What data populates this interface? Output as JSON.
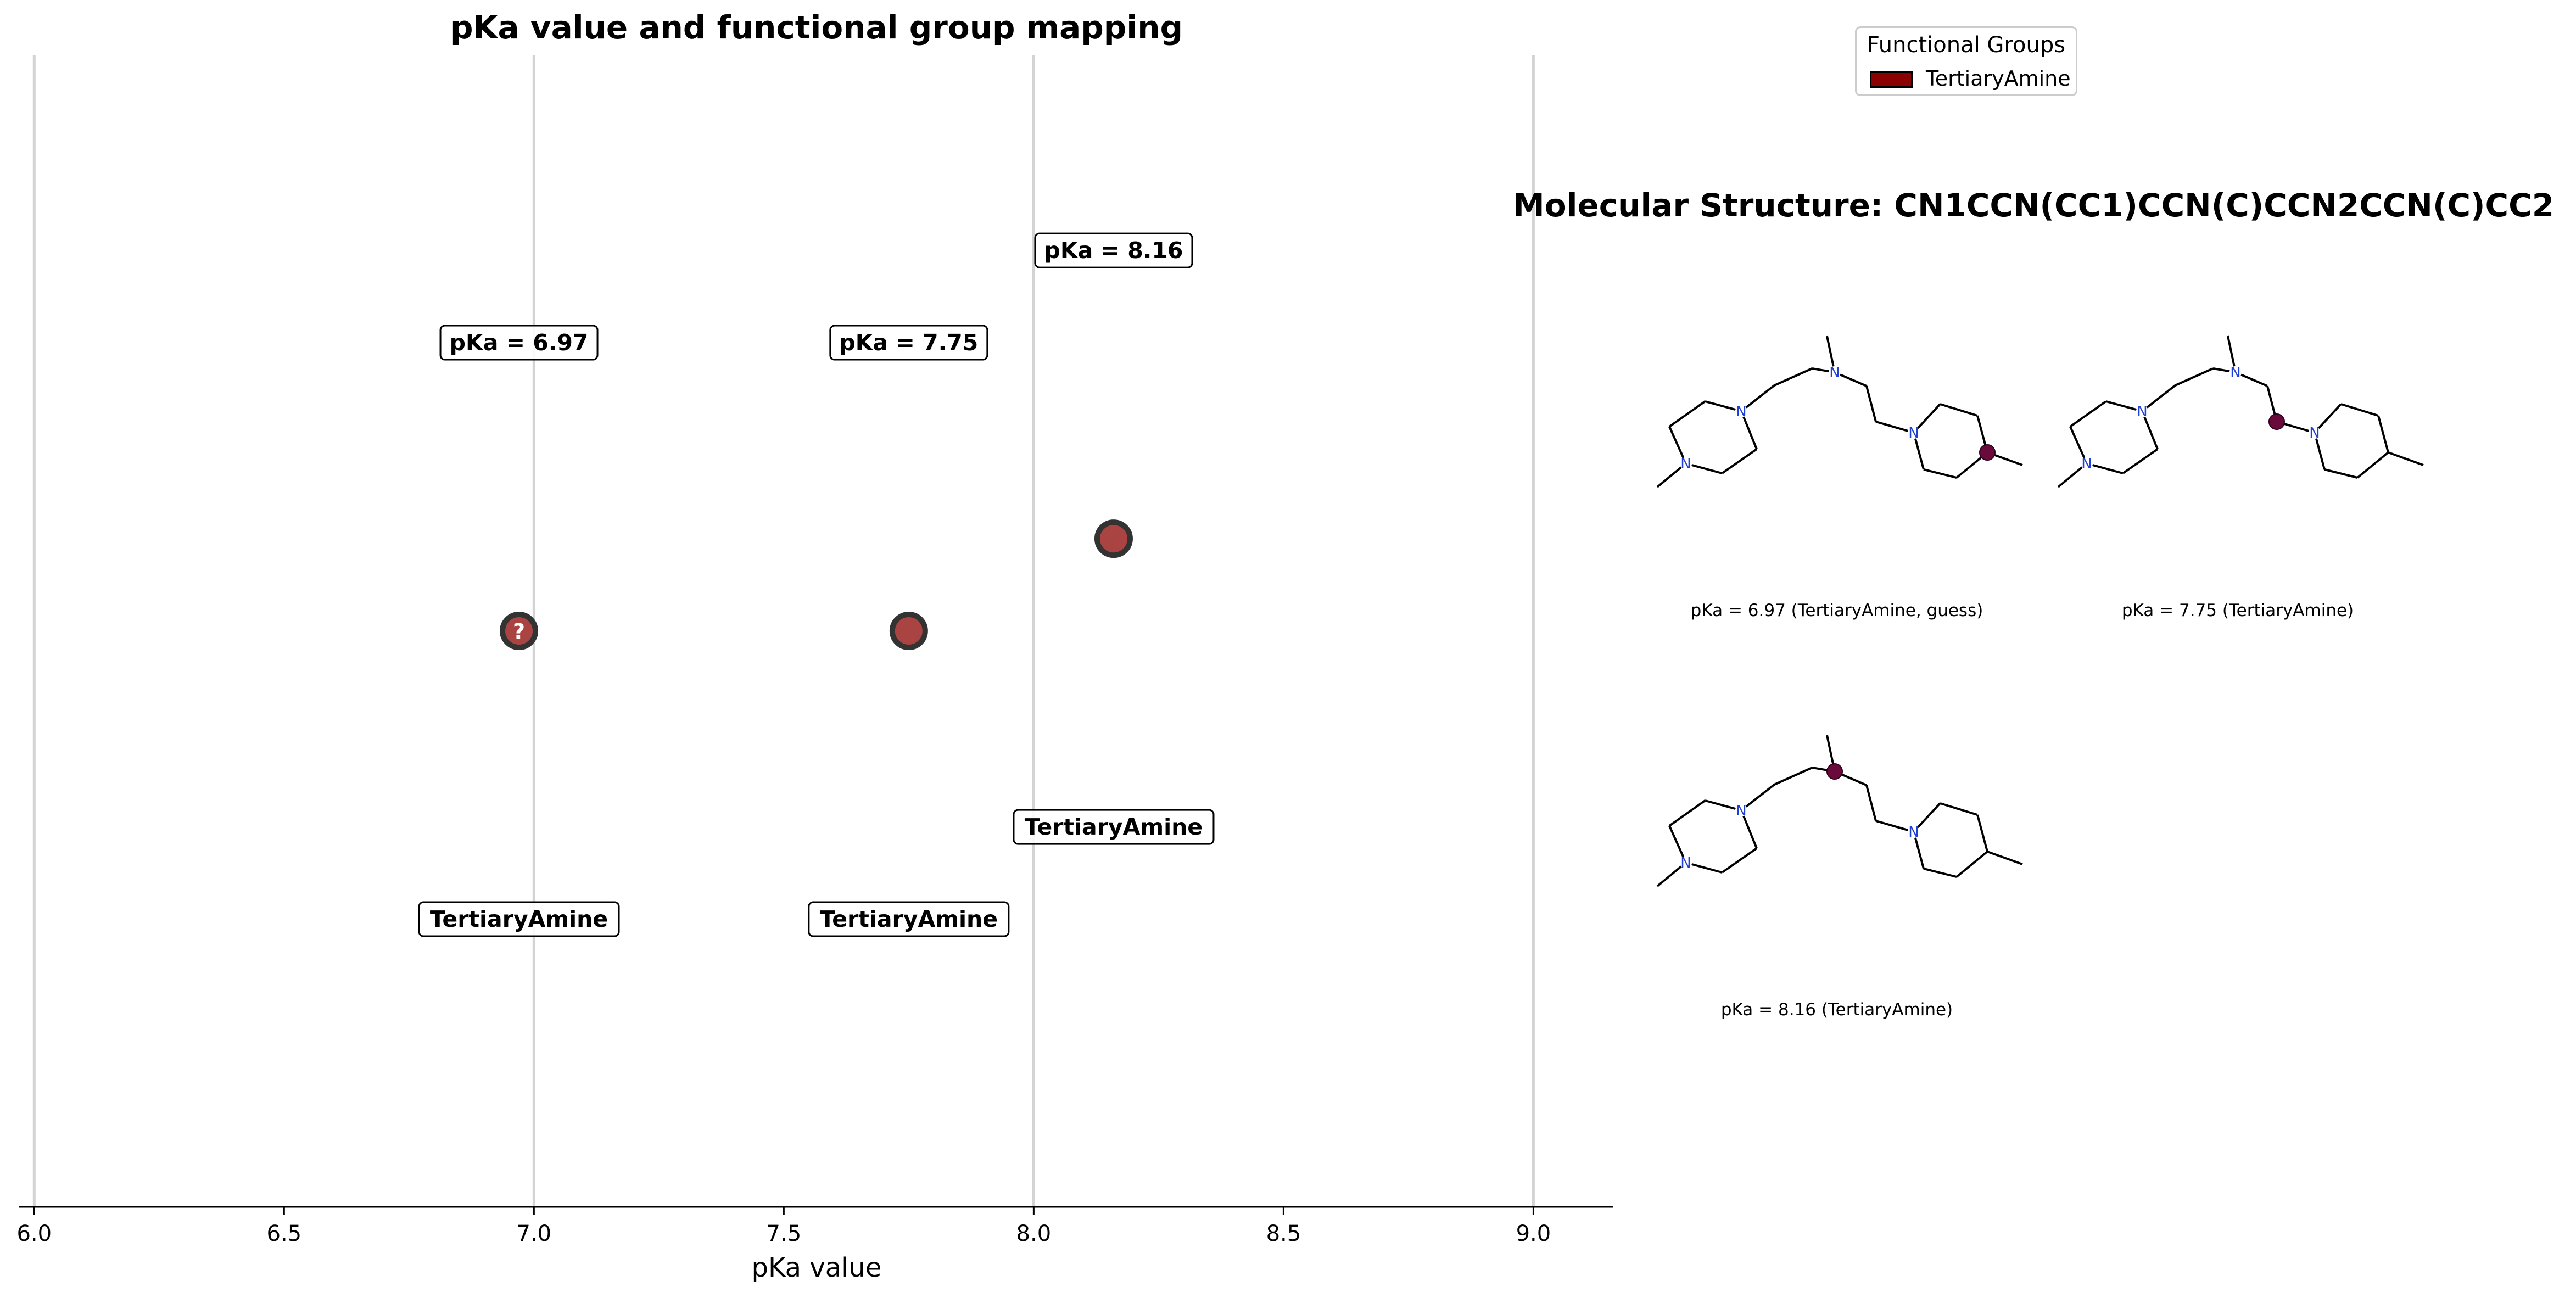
{
  "chart_data": {
    "type": "scatter",
    "title": "pKa value and functional group mapping",
    "xlabel": "pKa value",
    "ylabel": "",
    "xlim": [
      5.97,
      9.16
    ],
    "ylim": [
      -0.5,
      4.5
    ],
    "xticks": [
      "6.0",
      "6.5",
      "7.0",
      "7.5",
      "8.0",
      "8.5",
      "9.0"
    ],
    "xtick_values": [
      6.0,
      6.5,
      7.0,
      7.5,
      8.0,
      8.5,
      9.0
    ],
    "vertical_reference_lines": [
      6.0,
      7.0,
      8.0,
      9.0
    ],
    "grid": false,
    "legend_placement": "top-right",
    "points": [
      {
        "x": 6.97,
        "y": 2.0,
        "value_label": "pKa = 6.97",
        "group_label": "TertiaryAmine",
        "marker_text": "?"
      },
      {
        "x": 7.75,
        "y": 2.0,
        "value_label": "pKa = 7.75",
        "group_label": "TertiaryAmine",
        "marker_text": ""
      },
      {
        "x": 8.16,
        "y": 2.4,
        "value_label": "pKa = 8.16",
        "group_label": "TertiaryAmine",
        "marker_text": ""
      }
    ],
    "marker_color": "#a94442",
    "marker_edge_color": "#333333"
  },
  "legend": {
    "title": "Functional Groups",
    "items": [
      {
        "label": "TertiaryAmine",
        "color": "#8b0000"
      }
    ]
  },
  "molecule": {
    "title": "Molecular Structure: CN1CCN(CC1)CCN(C)CCN2CCN(C)CC2",
    "panels": [
      {
        "caption": "pKa = 6.97 (TertiaryAmine, guess)"
      },
      {
        "caption": "pKa = 7.75 (TertiaryAmine)"
      },
      {
        "caption": "pKa = 8.16 (TertiaryAmine)"
      }
    ],
    "atom_label": "N",
    "atom_color": "#1f3fd6",
    "bond_color": "#000000",
    "highlight_color": "#6a0a3a"
  }
}
